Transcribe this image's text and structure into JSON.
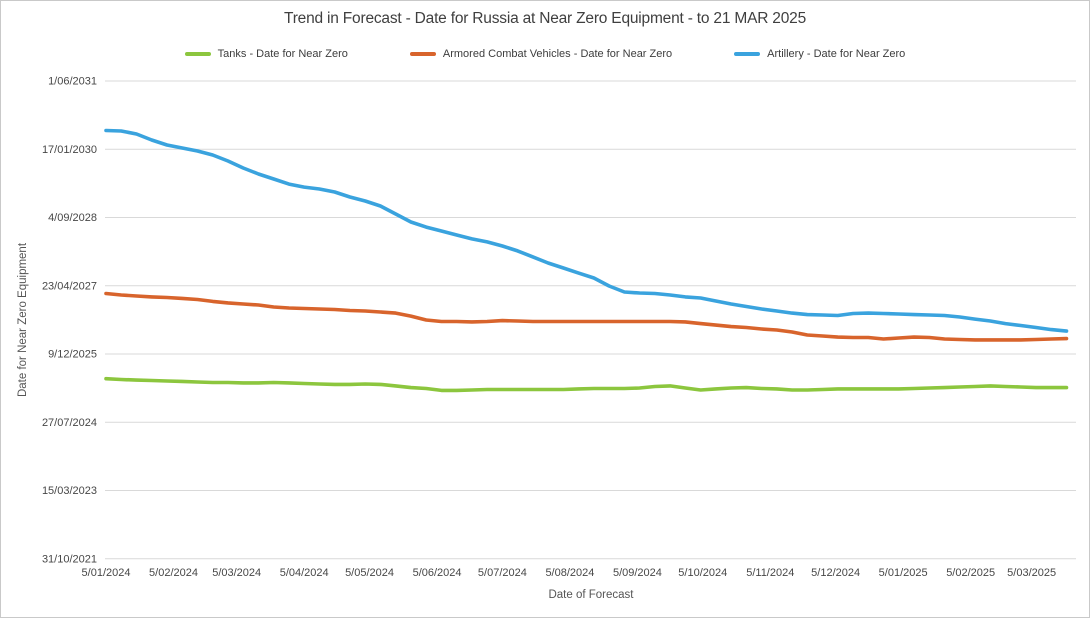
{
  "title": "Trend in Forecast - Date for Russia at Near Zero Equipment - to 21 MAR 2025",
  "legend": {
    "items": [
      {
        "id": "tanks",
        "label": "Tanks - Date for Near Zero",
        "color": "#8cc63e"
      },
      {
        "id": "acv",
        "label": "Armored Combat Vehicles - Date for Near Zero",
        "color": "#d8642c"
      },
      {
        "id": "artillery",
        "label": "Artillery - Date for Near Zero",
        "color": "#3aa3de"
      }
    ]
  },
  "chart_data": {
    "type": "line",
    "title": "Trend in Forecast - Date for Russia at Near Zero Equipment - to 21 MAR 2025",
    "xlabel": "Date of Forecast",
    "ylabel": "Date for Near Zero Equipment",
    "grid": true,
    "legend_position": "top",
    "x_axis": {
      "tick_labels": [
        "5/01/2024",
        "5/02/2024",
        "5/03/2024",
        "5/04/2024",
        "5/05/2024",
        "5/06/2024",
        "5/07/2024",
        "5/08/2024",
        "5/09/2024",
        "5/10/2024",
        "5/11/2024",
        "5/12/2024",
        "5/01/2025",
        "5/02/2025",
        "5/03/2025"
      ],
      "tick_dates": [
        "2024-01-05",
        "2024-02-05",
        "2024-03-05",
        "2024-04-05",
        "2024-05-05",
        "2024-06-05",
        "2024-07-05",
        "2024-08-05",
        "2024-09-05",
        "2024-10-05",
        "2024-11-05",
        "2024-12-05",
        "2025-01-05",
        "2025-02-05",
        "2025-03-05"
      ]
    },
    "y_axis": {
      "tick_labels": [
        "1/06/2031",
        "17/01/2030",
        "4/09/2028",
        "23/04/2027",
        "9/12/2025",
        "27/07/2024",
        "15/03/2023",
        "31/10/2021"
      ],
      "tick_dates": [
        "2031-06-01",
        "2030-01-17",
        "2028-09-04",
        "2027-04-23",
        "2025-12-09",
        "2024-07-27",
        "2023-03-15",
        "2021-10-31"
      ],
      "range": [
        "2021-10-31",
        "2031-06-01"
      ]
    },
    "x": [
      "2024-01-05",
      "2024-01-12",
      "2024-01-19",
      "2024-01-26",
      "2024-02-02",
      "2024-02-09",
      "2024-02-16",
      "2024-02-23",
      "2024-03-01",
      "2024-03-08",
      "2024-03-15",
      "2024-03-22",
      "2024-03-29",
      "2024-04-05",
      "2024-04-12",
      "2024-04-19",
      "2024-04-26",
      "2024-05-03",
      "2024-05-10",
      "2024-05-17",
      "2024-05-24",
      "2024-05-31",
      "2024-06-07",
      "2024-06-14",
      "2024-06-21",
      "2024-06-28",
      "2024-07-05",
      "2024-07-12",
      "2024-07-19",
      "2024-07-26",
      "2024-08-02",
      "2024-08-09",
      "2024-08-16",
      "2024-08-23",
      "2024-08-30",
      "2024-09-06",
      "2024-09-13",
      "2024-09-20",
      "2024-09-27",
      "2024-10-04",
      "2024-10-11",
      "2024-10-18",
      "2024-10-25",
      "2024-11-01",
      "2024-11-08",
      "2024-11-15",
      "2024-11-22",
      "2024-11-29",
      "2024-12-06",
      "2024-12-13",
      "2024-12-20",
      "2024-12-27",
      "2025-01-03",
      "2025-01-10",
      "2025-01-17",
      "2025-01-24",
      "2025-01-31",
      "2025-02-07",
      "2025-02-14",
      "2025-02-21",
      "2025-02-28",
      "2025-03-07",
      "2025-03-14",
      "2025-03-21"
    ],
    "series": [
      {
        "id": "tanks",
        "name": "Tanks - Date for Near Zero",
        "color": "#8cc63e",
        "values": [
          "2025-06-11",
          "2025-06-05",
          "2025-06-01",
          "2025-05-29",
          "2025-05-25",
          "2025-05-22",
          "2025-05-18",
          "2025-05-14",
          "2025-05-14",
          "2025-05-11",
          "2025-05-11",
          "2025-05-14",
          "2025-05-11",
          "2025-05-07",
          "2025-05-03",
          "2025-04-30",
          "2025-04-30",
          "2025-05-03",
          "2025-04-30",
          "2025-04-19",
          "2025-04-07",
          "2025-03-31",
          "2025-03-17",
          "2025-03-17",
          "2025-03-20",
          "2025-03-24",
          "2025-03-24",
          "2025-03-24",
          "2025-03-24",
          "2025-03-24",
          "2025-03-24",
          "2025-03-28",
          "2025-03-31",
          "2025-03-31",
          "2025-03-31",
          "2025-04-04",
          "2025-04-15",
          "2025-04-19",
          "2025-04-04",
          "2025-03-20",
          "2025-03-28",
          "2025-04-04",
          "2025-04-07",
          "2025-03-31",
          "2025-03-28",
          "2025-03-20",
          "2025-03-20",
          "2025-03-24",
          "2025-03-28",
          "2025-03-28",
          "2025-03-28",
          "2025-03-28",
          "2025-03-28",
          "2025-03-31",
          "2025-04-04",
          "2025-04-07",
          "2025-04-11",
          "2025-04-15",
          "2025-04-19",
          "2025-04-15",
          "2025-04-11",
          "2025-04-07",
          "2025-04-07",
          "2025-04-07"
        ]
      },
      {
        "id": "acv",
        "name": "Armored Combat Vehicles - Date for Near Zero",
        "color": "#d8642c",
        "values": [
          "2027-02-25",
          "2027-02-14",
          "2027-02-07",
          "2027-01-31",
          "2027-01-27",
          "2027-01-20",
          "2027-01-12",
          "2026-12-29",
          "2026-12-18",
          "2026-12-10",
          "2026-12-03",
          "2026-11-18",
          "2026-11-11",
          "2026-11-07",
          "2026-11-04",
          "2026-10-31",
          "2026-10-24",
          "2026-10-20",
          "2026-10-13",
          "2026-10-05",
          "2026-09-13",
          "2026-08-15",
          "2026-08-04",
          "2026-08-04",
          "2026-08-01",
          "2026-08-04",
          "2026-08-11",
          "2026-08-08",
          "2026-08-04",
          "2026-08-04",
          "2026-08-04",
          "2026-08-04",
          "2026-08-04",
          "2026-08-04",
          "2026-08-04",
          "2026-08-04",
          "2026-08-04",
          "2026-08-04",
          "2026-08-01",
          "2026-07-20",
          "2026-07-09",
          "2026-06-28",
          "2026-06-21",
          "2026-06-10",
          "2026-06-03",
          "2026-05-19",
          "2026-04-27",
          "2026-04-20",
          "2026-04-12",
          "2026-04-09",
          "2026-04-09",
          "2026-03-29",
          "2026-04-05",
          "2026-04-12",
          "2026-04-09",
          "2026-03-29",
          "2026-03-25",
          "2026-03-22",
          "2026-03-22",
          "2026-03-22",
          "2026-03-22",
          "2026-03-25",
          "2026-03-29",
          "2026-04-01"
        ]
      },
      {
        "id": "artillery",
        "name": "Artillery - Date for Near Zero",
        "color": "#3aa3de",
        "values": [
          "2030-06-03",
          "2030-05-31",
          "2030-05-09",
          "2030-03-26",
          "2030-02-17",
          "2030-01-26",
          "2030-01-04",
          "2029-12-06",
          "2029-10-23",
          "2029-09-02",
          "2029-07-20",
          "2029-06-13",
          "2029-05-07",
          "2029-04-15",
          "2029-04-01",
          "2029-03-10",
          "2029-02-01",
          "2029-01-03",
          "2028-11-27",
          "2028-09-30",
          "2028-08-02",
          "2028-06-26",
          "2028-05-28",
          "2028-04-29",
          "2028-03-31",
          "2028-03-09",
          "2028-02-08",
          "2028-01-03",
          "2027-11-20",
          "2027-10-07",
          "2027-08-31",
          "2027-07-25",
          "2027-06-19",
          "2027-04-21",
          "2027-03-08",
          "2027-03-01",
          "2027-02-25",
          "2027-02-14",
          "2027-01-31",
          "2027-01-23",
          "2027-01-01",
          "2026-12-10",
          "2026-11-22",
          "2026-11-04",
          "2026-10-20",
          "2026-10-05",
          "2026-09-24",
          "2026-09-21",
          "2026-09-17",
          "2026-10-02",
          "2026-10-05",
          "2026-10-02",
          "2026-09-28",
          "2026-09-24",
          "2026-09-21",
          "2026-09-17",
          "2026-09-06",
          "2026-08-22",
          "2026-08-08",
          "2026-07-20",
          "2026-07-06",
          "2026-06-21",
          "2026-06-06",
          "2026-05-26"
        ]
      }
    ]
  }
}
